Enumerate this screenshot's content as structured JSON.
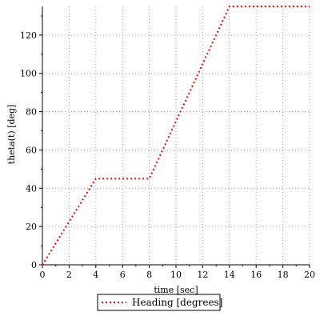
{
  "chart_data": {
    "type": "line",
    "title": "",
    "xlabel": "time [sec]",
    "ylabel": "theta(t) [deg]",
    "xlim": [
      0,
      20
    ],
    "ylim": [
      0,
      135
    ],
    "x_ticks": [
      0,
      2,
      4,
      6,
      8,
      10,
      12,
      14,
      16,
      18,
      20
    ],
    "y_ticks": [
      0,
      20,
      40,
      60,
      80,
      100,
      120
    ],
    "grid": true,
    "legend_position": "bottom-center",
    "series": [
      {
        "name": "Heading [degrees]",
        "color": "#ff0000",
        "line_style": "dotted",
        "x": [
          0,
          4,
          8,
          14,
          20
        ],
        "y": [
          0,
          45,
          45,
          135,
          135
        ]
      }
    ]
  }
}
